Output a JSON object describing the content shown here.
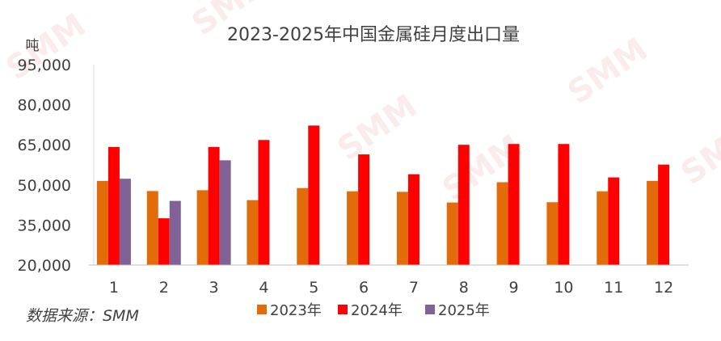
{
  "chart_data": {
    "type": "bar",
    "title": "2023-2025年中国金属硅月度出口量",
    "ylabel": "吨",
    "xlabel": "",
    "categories": [
      "1",
      "2",
      "3",
      "4",
      "5",
      "6",
      "7",
      "8",
      "9",
      "10",
      "11",
      "12"
    ],
    "ylim": [
      20000,
      95000
    ],
    "yticks": [
      20000,
      35000,
      50000,
      65000,
      80000,
      95000
    ],
    "ytick_labels": [
      "20,000",
      "35,000",
      "50,000",
      "65,000",
      "80,000",
      "95,000"
    ],
    "grid": false,
    "legend_position": "bottom",
    "series": [
      {
        "name": "2023年",
        "color": "#E36C0A",
        "values": [
          51500,
          47700,
          48000,
          44300,
          48800,
          47600,
          47400,
          43400,
          51000,
          43500,
          47600,
          51500
        ]
      },
      {
        "name": "2024年",
        "color": "#FF0000",
        "values": [
          64200,
          37500,
          64200,
          66800,
          72200,
          61400,
          54000,
          65000,
          65300,
          65300,
          52800,
          57600
        ]
      },
      {
        "name": "2025年",
        "color": "#7F6296",
        "values": [
          52300,
          44000,
          59200,
          null,
          null,
          null,
          null,
          null,
          null,
          null,
          null,
          null
        ]
      }
    ]
  },
  "source": "数据来源：SMM",
  "watermark": "SMM"
}
